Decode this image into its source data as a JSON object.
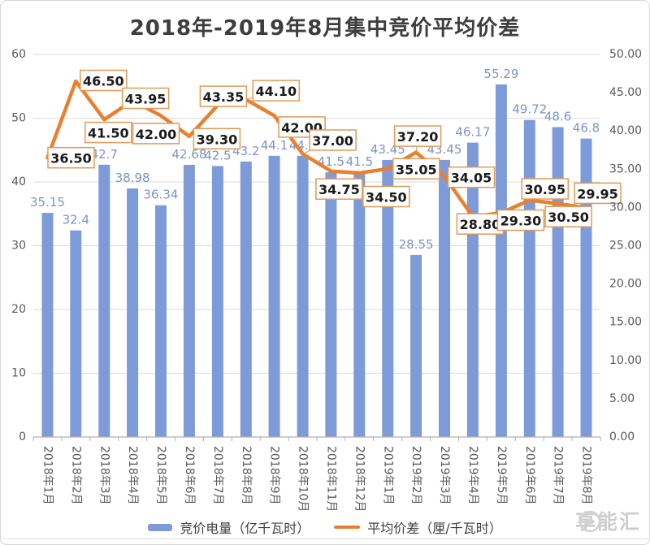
{
  "header": {
    "title": "2018年-2019年8月集中竞价平均价差"
  },
  "watermark": {
    "text": "享能汇"
  },
  "chart_data": {
    "type": "bar+line",
    "title": "2018年-2019年8月集中竞价平均价差",
    "categories": [
      "2018年1月",
      "2018年2月",
      "2018年3月",
      "2018年4月",
      "2018年5月",
      "2018年6月",
      "2018年7月",
      "2018年8月",
      "2018年9月",
      "2018年10月",
      "2018年11月",
      "2018年12月",
      "2019年1月",
      "2019年2月",
      "2019年3月",
      "2019年4月",
      "2019年5月",
      "2019年6月",
      "2019年7月",
      "2019年8月"
    ],
    "series": [
      {
        "name": "竞价电量（亿千瓦时）",
        "type": "bar",
        "y_axis": "left",
        "color": "#7E9BD9",
        "values": [
          35.15,
          32.4,
          42.7,
          38.98,
          36.34,
          42.68,
          42.5,
          43.2,
          44.1,
          44.1,
          41.5,
          41.5,
          43.45,
          28.55,
          43.45,
          46.17,
          55.29,
          49.72,
          48.6,
          46.8
        ],
        "labels": [
          "35.15",
          "32.4",
          "42.7",
          "38.98",
          "36.34",
          "42.68",
          "42.5",
          "43.2",
          "44.1",
          "44.1",
          "41.5",
          "41.5",
          "43.45",
          "28.55",
          "43.45",
          "46.17",
          "55.29",
          "49.72",
          "48.6",
          "46.8"
        ]
      },
      {
        "name": "平均价差（厘/千瓦时）",
        "type": "line",
        "y_axis": "right",
        "color": "#E8802F",
        "values": [
          36.5,
          46.5,
          41.5,
          43.95,
          42.0,
          39.3,
          43.35,
          44.1,
          42.0,
          37.0,
          34.75,
          34.5,
          35.05,
          37.2,
          34.05,
          28.8,
          29.3,
          30.95,
          30.5,
          29.95
        ],
        "labels": [
          "36.50",
          "46.50",
          "41.50",
          "43.95",
          "42.00",
          "39.30",
          "43.35",
          "44.10",
          "42.00",
          "37.00",
          "34.75",
          "34.50",
          "35.05",
          "37.20",
          "34.05",
          "28.80",
          "29.30",
          "30.95",
          "30.50",
          "29.95"
        ]
      }
    ],
    "axes": {
      "left": {
        "min": 0,
        "max": 60,
        "step": 10,
        "tick_labels": [
          "0",
          "10",
          "20",
          "30",
          "40",
          "50",
          "60"
        ]
      },
      "right": {
        "min": 0,
        "max": 50,
        "step": 5,
        "tick_labels": [
          "0.00",
          "5.00",
          "10.00",
          "15.00",
          "20.00",
          "25.00",
          "30.00",
          "35.00",
          "40.00",
          "45.00",
          "50.00"
        ]
      }
    },
    "grid": true,
    "legend_position": "bottom",
    "colors": {
      "bar": "#7E9BD9",
      "bar_label": "#7D93C6",
      "line": "#E8802F",
      "line_label_box_border": "#E09A58",
      "line_label_text": "#1a1a1a",
      "gridline": "#DBDBDB",
      "axis_line": "#B0B0B0",
      "axis_text": "#595959",
      "title_text": "#3E3E3E"
    },
    "layout": {
      "line_label_offsets": [
        [
          29,
          0,
          0
        ],
        [
          34,
          -1,
          0
        ],
        [
          5,
          16,
          0
        ],
        [
          16,
          -3,
          0
        ],
        [
          -6,
          22,
          0
        ],
        [
          34,
          3,
          0
        ],
        [
          7,
          -11,
          0
        ],
        [
          37,
          -11,
          1
        ],
        [
          34,
          14,
          0
        ],
        [
          37,
          -17,
          1
        ],
        [
          10,
          22,
          0
        ],
        [
          33,
          29,
          0
        ],
        [
          35,
          0,
          0
        ],
        [
          2,
          -20,
          1
        ],
        [
          33,
          1,
          0
        ],
        [
          9,
          9,
          0
        ],
        [
          24,
          9,
          0
        ],
        [
          19,
          -14,
          0
        ],
        [
          13,
          16,
          0
        ],
        [
          14,
          -18,
          0
        ]
      ]
    }
  }
}
